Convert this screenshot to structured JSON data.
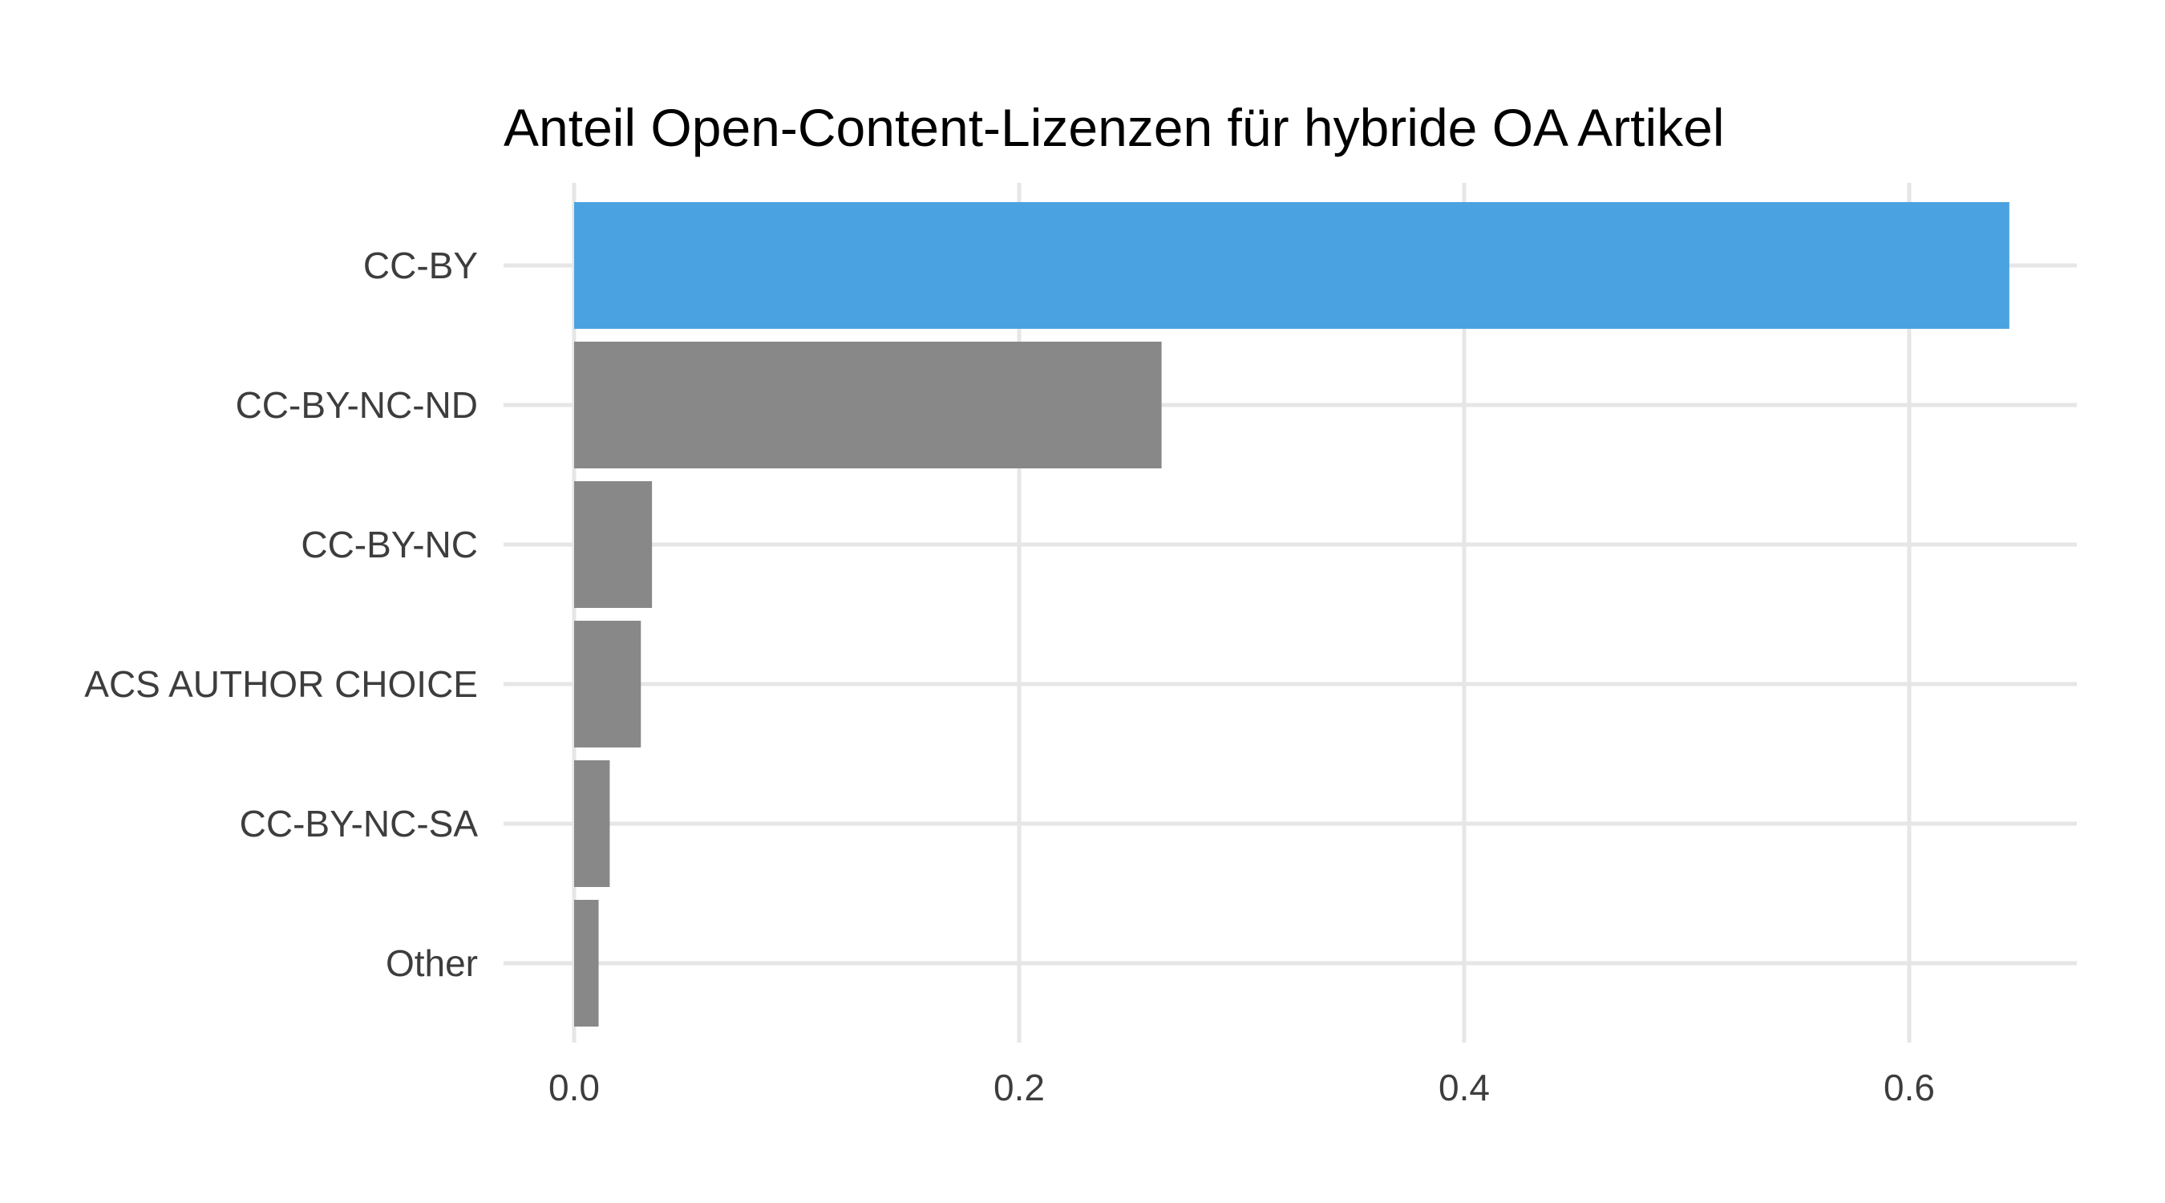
{
  "chart_data": {
    "type": "bar",
    "orientation": "horizontal",
    "title": "Anteil Open-Content-Lizenzen für hybride OA Artikel",
    "xlabel": "",
    "ylabel": "",
    "categories": [
      "CC-BY",
      "CC-BY-NC-ND",
      "CC-BY-NC",
      "ACS AUTHOR CHOICE",
      "CC-BY-NC-SA",
      "Other"
    ],
    "values": [
      0.645,
      0.264,
      0.035,
      0.03,
      0.016,
      0.011
    ],
    "highlight_category": "CC-BY",
    "x_ticks": [
      "0.0",
      "0.2",
      "0.4",
      "0.6"
    ],
    "x_tick_values": [
      0.0,
      0.2,
      0.4,
      0.6
    ],
    "xlim": [
      0,
      0.675
    ],
    "grid": true,
    "legend": "none"
  },
  "colors": {
    "highlight": "#4aa3e0",
    "default_bar": "#888888",
    "grid": "#e6e6e6",
    "text": "#3d3d3d",
    "title": "#000000"
  }
}
